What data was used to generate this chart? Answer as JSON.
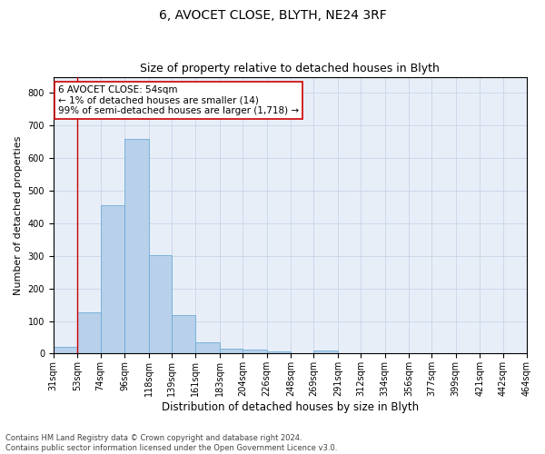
{
  "title": "6, AVOCET CLOSE, BLYTH, NE24 3RF",
  "subtitle": "Size of property relative to detached houses in Blyth",
  "xlabel": "Distribution of detached houses by size in Blyth",
  "ylabel": "Number of detached properties",
  "bin_edges": [
    31,
    53,
    74,
    96,
    118,
    139,
    161,
    183,
    204,
    226,
    248,
    269,
    291,
    312,
    334,
    356,
    377,
    399,
    421,
    442,
    464
  ],
  "bin_counts": [
    20,
    127,
    456,
    660,
    303,
    117,
    35,
    15,
    11,
    8,
    0,
    10,
    0,
    0,
    0,
    0,
    0,
    0,
    0,
    0
  ],
  "bar_color": "#b8d0ea",
  "bar_edge_color": "#6baed6",
  "grid_color": "#c8d4e8",
  "vline_x": 53,
  "vline_color": "#cc0000",
  "annotation_text": "6 AVOCET CLOSE: 54sqm\n← 1% of detached houses are smaller (14)\n99% of semi-detached houses are larger (1,718) →",
  "annotation_box_color": "white",
  "annotation_box_edge": "#cc0000",
  "ylim": [
    0,
    850
  ],
  "yticks": [
    0,
    100,
    200,
    300,
    400,
    500,
    600,
    700,
    800
  ],
  "footer": "Contains HM Land Registry data © Crown copyright and database right 2024.\nContains public sector information licensed under the Open Government Licence v3.0.",
  "background_color": "#e8eef8",
  "fig_background": "#ffffff",
  "title_fontsize": 10,
  "subtitle_fontsize": 9,
  "xlabel_fontsize": 8.5,
  "ylabel_fontsize": 8,
  "footer_fontsize": 6,
  "tick_fontsize": 7,
  "annot_fontsize": 7.5
}
